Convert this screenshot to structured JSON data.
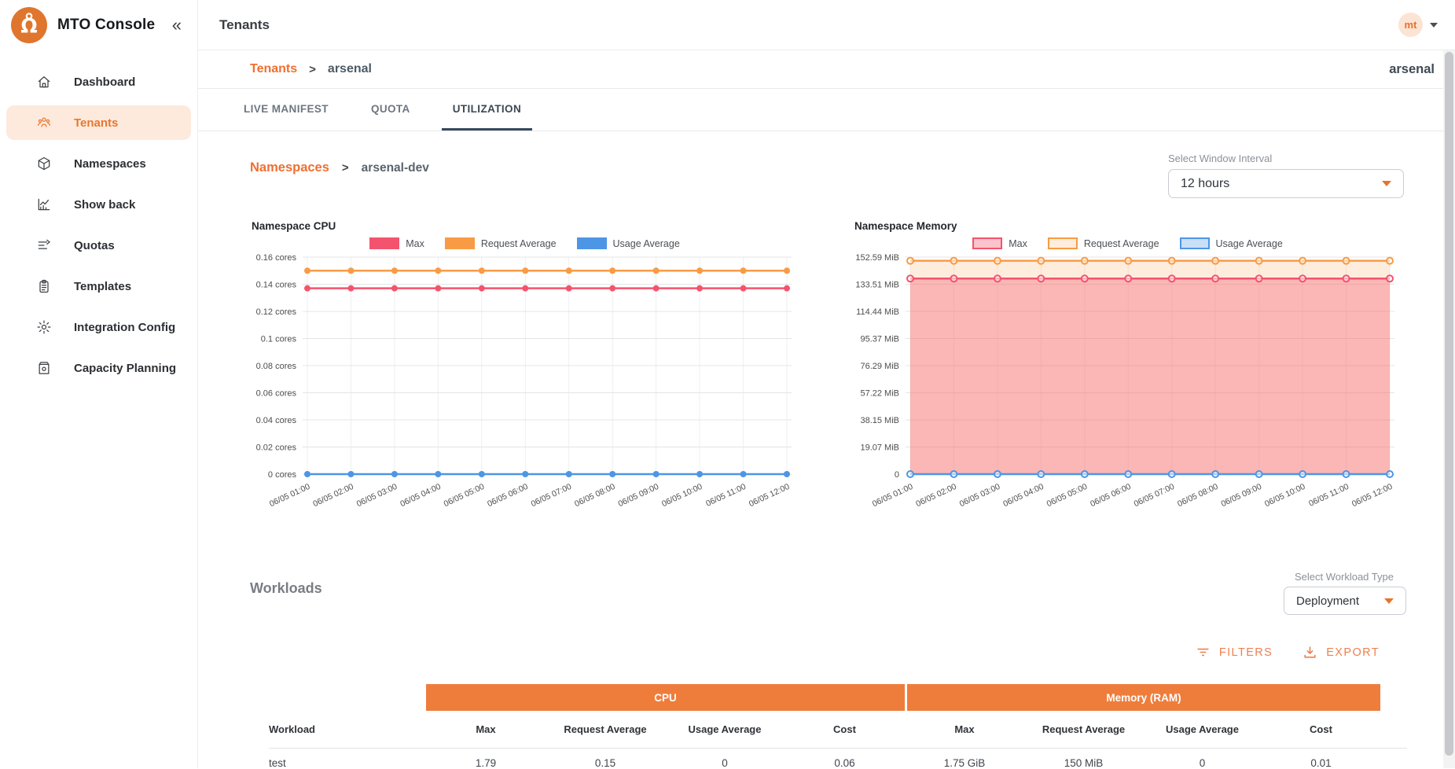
{
  "colors": {
    "brand_orange": "#ee7d3c",
    "link_orange": "#ee7031",
    "active_item_bg": "#fdeadd",
    "series_max": "#f4536e",
    "series_request": "#f99b45",
    "series_usage": "#4d96e5",
    "tab_indicator": "#35495e"
  },
  "app": {
    "title": "MTO Console",
    "collapse_icon": "«"
  },
  "topbar": {
    "title": "Tenants",
    "avatar_initials": "mt"
  },
  "sidebar": {
    "items": [
      {
        "label": "Dashboard",
        "icon": "home-icon",
        "active": false
      },
      {
        "label": "Tenants",
        "icon": "tenants-icon",
        "active": true
      },
      {
        "label": "Namespaces",
        "icon": "cube-icon",
        "active": false
      },
      {
        "label": "Show back",
        "icon": "chart-icon",
        "active": false
      },
      {
        "label": "Quotas",
        "icon": "quota-icon",
        "active": false
      },
      {
        "label": "Templates",
        "icon": "clipboard-icon",
        "active": false
      },
      {
        "label": "Integration Config",
        "icon": "gear-icon",
        "active": false
      },
      {
        "label": "Capacity Planning",
        "icon": "capacity-icon",
        "active": false
      }
    ]
  },
  "page": {
    "breadcrumb": {
      "root": "Tenants",
      "separator": ">",
      "current": "arsenal"
    },
    "context": "arsenal",
    "tabs": [
      {
        "label": "LIVE MANIFEST",
        "active": false
      },
      {
        "label": "QUOTA",
        "active": false
      },
      {
        "label": "UTILIZATION",
        "active": true
      }
    ]
  },
  "utilization": {
    "namespace_breadcrumb": {
      "root": "Namespaces",
      "separator": ">",
      "current": "arsenal-dev"
    },
    "window_interval": {
      "label": "Select Window Interval",
      "value": "12 hours"
    },
    "workloads_heading": "Workloads",
    "workload_type": {
      "label": "Select Workload Type",
      "value": "Deployment"
    },
    "actions": {
      "filters": "FILTERS",
      "export": "EXPORT"
    }
  },
  "chart_data": [
    {
      "type": "line",
      "title": "Namespace CPU",
      "unit": "cores",
      "ymax": 0.16,
      "yticks": [
        "0.16 cores",
        "0.14 cores",
        "0.12 cores",
        "0.1 cores",
        "0.08 cores",
        "0.06 cores",
        "0.04 cores",
        "0.02 cores",
        "0 cores"
      ],
      "x": [
        "06/05 01:00",
        "06/05 02:00",
        "06/05 03:00",
        "06/05 04:00",
        "06/05 05:00",
        "06/05 06:00",
        "06/05 07:00",
        "06/05 08:00",
        "06/05 09:00",
        "06/05 10:00",
        "06/05 11:00",
        "06/05 12:00"
      ],
      "series": [
        {
          "name": "Max",
          "color": "#f4536e",
          "fill": null,
          "values": [
            0.137,
            0.137,
            0.137,
            0.137,
            0.137,
            0.137,
            0.137,
            0.137,
            0.137,
            0.137,
            0.137,
            0.137
          ]
        },
        {
          "name": "Request Average",
          "color": "#f99b45",
          "fill": null,
          "values": [
            0.15,
            0.15,
            0.15,
            0.15,
            0.15,
            0.15,
            0.15,
            0.15,
            0.15,
            0.15,
            0.15,
            0.15
          ]
        },
        {
          "name": "Usage Average",
          "color": "#4d96e5",
          "fill": null,
          "values": [
            0,
            0,
            0,
            0,
            0,
            0,
            0,
            0,
            0,
            0,
            0,
            0
          ]
        }
      ],
      "legend_style": "solid",
      "legend_position": "top-center",
      "grid": true
    },
    {
      "type": "area",
      "title": "Namespace Memory",
      "unit": "MiB",
      "ymax": 152.59,
      "yticks": [
        "152.59 MiB",
        "133.51 MiB",
        "114.44 MiB",
        "95.37 MiB",
        "76.29 MiB",
        "57.22 MiB",
        "38.15 MiB",
        "19.07 MiB",
        "0"
      ],
      "x": [
        "06/05 01:00",
        "06/05 02:00",
        "06/05 03:00",
        "06/05 04:00",
        "06/05 05:00",
        "06/05 06:00",
        "06/05 07:00",
        "06/05 08:00",
        "06/05 09:00",
        "06/05 10:00",
        "06/05 11:00",
        "06/05 12:00"
      ],
      "series": [
        {
          "name": "Max",
          "color": "#f4536e",
          "fill": "rgba(244,83,110,0.35)",
          "values": [
            137.5,
            137.5,
            137.5,
            137.5,
            137.5,
            137.5,
            137.5,
            137.5,
            137.5,
            137.5,
            137.5,
            137.5
          ]
        },
        {
          "name": "Request Average",
          "color": "#f99b45",
          "fill": "rgba(249,155,69,0.18)",
          "values": [
            150,
            150,
            150,
            150,
            150,
            150,
            150,
            150,
            150,
            150,
            150,
            150
          ]
        },
        {
          "name": "Usage Average",
          "color": "#4d96e5",
          "fill": "rgba(77,150,229,0.3)",
          "values": [
            0,
            0,
            0,
            0,
            0,
            0,
            0,
            0,
            0,
            0,
            0,
            0
          ]
        }
      ],
      "legend_style": "outline",
      "legend_position": "top-center",
      "grid": true
    }
  ],
  "table": {
    "column_groups": [
      {
        "label": "Workload",
        "span": 1,
        "plain": true
      },
      {
        "label": "CPU",
        "span": 4,
        "plain": false
      },
      {
        "label": "Memory (RAM)",
        "span": 4,
        "plain": false
      }
    ],
    "columns": [
      "Workload",
      "Max",
      "Request Average",
      "Usage Average",
      "Cost",
      "Max",
      "Request Average",
      "Usage Average",
      "Cost"
    ],
    "rows": [
      [
        "test",
        "1.79",
        "0.15",
        "0",
        "0.06",
        "1.75 GiB",
        "150 MiB",
        "0",
        "0.01"
      ]
    ]
  }
}
